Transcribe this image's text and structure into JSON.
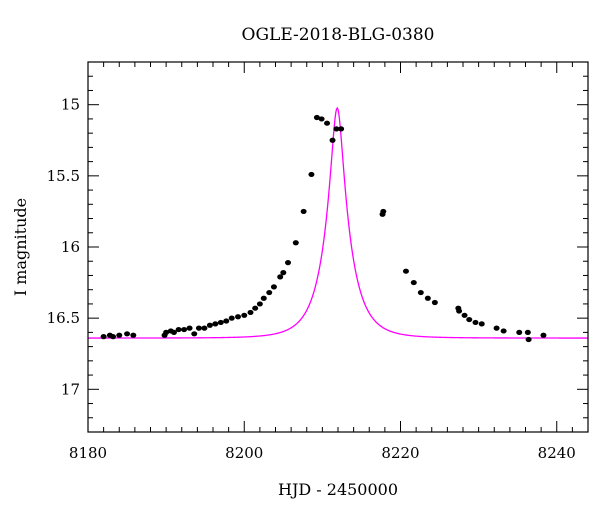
{
  "chart_data": {
    "type": "scatter",
    "title": "OGLE-2018-BLG-0380",
    "xlabel": "HJD - 2450000",
    "ylabel": "I magnitude",
    "xlim": [
      8180,
      8244
    ],
    "ylim": [
      17.3,
      14.7
    ],
    "y_inverted": true,
    "grid": false,
    "legend": "none",
    "x_major_ticks": [
      8180,
      8200,
      8220,
      8240
    ],
    "x_tick_labels": [
      "8180",
      "8200",
      "8220",
      "8240"
    ],
    "x_minor_step": 2,
    "y_major_ticks": [
      15,
      15.5,
      16,
      16.5,
      17
    ],
    "y_tick_labels": [
      "15",
      "15.5",
      "16",
      "16.5",
      "17"
    ],
    "y_minor_step": 0.1,
    "colors": {
      "data": "#000000",
      "model": "#ff00ff"
    },
    "series": [
      {
        "kind": "points",
        "x": [
          8182.0,
          8182.8,
          8183.2,
          8184.0,
          8185.0,
          8185.8,
          8189.8,
          8190.0,
          8190.6,
          8191.0,
          8191.6,
          8192.3,
          8193.0,
          8193.6,
          8194.2,
          8194.9,
          8195.6,
          8196.3,
          8197.0,
          8197.7,
          8198.4,
          8199.2,
          8200.0,
          8200.8,
          8201.4,
          8202.0,
          8202.5,
          8203.2,
          8203.8,
          8204.6,
          8205.0,
          8205.6,
          8206.6,
          8207.6,
          8208.6,
          8209.3,
          8209.9,
          8210.6,
          8211.3,
          8211.8,
          8212.4,
          8217.7,
          8217.8,
          8220.7,
          8221.7,
          8222.6,
          8223.5,
          8224.4,
          8227.4,
          8227.5,
          8228.2,
          8228.8,
          8229.6,
          8230.4,
          8232.3,
          8233.2,
          8235.2,
          8236.3,
          8236.4,
          8238.3
        ],
        "y": [
          16.63,
          16.62,
          16.63,
          16.62,
          16.61,
          16.62,
          16.62,
          16.6,
          16.59,
          16.6,
          16.58,
          16.58,
          16.57,
          16.61,
          16.57,
          16.57,
          16.55,
          16.54,
          16.53,
          16.52,
          16.5,
          16.49,
          16.48,
          16.46,
          16.43,
          16.4,
          16.36,
          16.32,
          16.28,
          16.21,
          16.18,
          16.11,
          15.97,
          15.75,
          15.49,
          15.09,
          15.1,
          15.13,
          15.25,
          15.17,
          15.17,
          15.77,
          15.75,
          16.17,
          16.25,
          16.32,
          16.36,
          16.39,
          16.43,
          16.45,
          16.48,
          16.51,
          16.53,
          16.54,
          16.57,
          16.59,
          16.6,
          16.6,
          16.65,
          16.62
        ]
      },
      {
        "kind": "line",
        "model": {
          "t0": 8211.9,
          "tE": 3.1,
          "u0": 0.23,
          "m_base": 16.64
        }
      }
    ]
  }
}
